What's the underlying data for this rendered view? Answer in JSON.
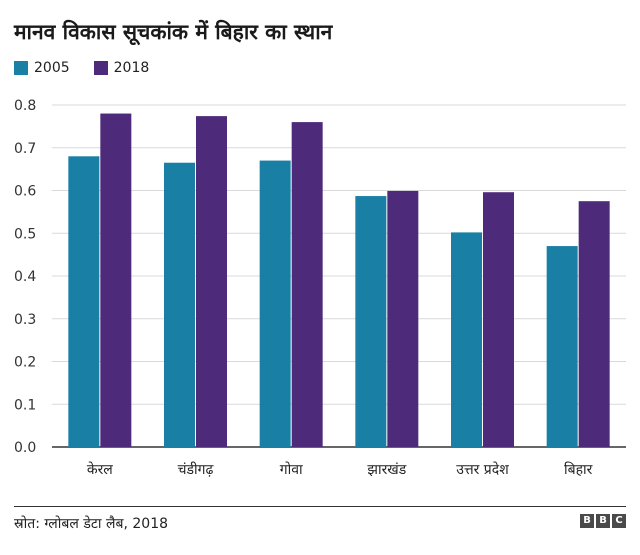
{
  "title": "मानव विकास सूचकांक में बिहार का स्थान",
  "legend": [
    {
      "label": "2005",
      "color": "#1a7fa5"
    },
    {
      "label": "2018",
      "color": "#4e2a7a"
    }
  ],
  "chart_data": {
    "type": "bar",
    "title": "मानव विकास सूचकांक में बिहार का स्थान",
    "categories": [
      "केरल",
      "चंडीगढ़",
      "गोवा",
      "झारखंड",
      "उत्तर प्रदेश",
      "बिहार"
    ],
    "series": [
      {
        "name": "2005",
        "color": "#1a7fa5",
        "values": [
          0.68,
          0.665,
          0.67,
          0.587,
          0.502,
          0.47
        ]
      },
      {
        "name": "2018",
        "color": "#4e2a7a",
        "values": [
          0.78,
          0.774,
          0.76,
          0.599,
          0.596,
          0.575
        ]
      }
    ],
    "ylim": [
      0,
      0.8
    ],
    "yticks": [
      "0.0",
      "0.1",
      "0.2",
      "0.3",
      "0.4",
      "0.5",
      "0.6",
      "0.7",
      "0.8"
    ],
    "grid": true,
    "legend_position": "top-left"
  },
  "footer": {
    "source": "स्रोत: ग्लोबल डेटा लैब, 2018",
    "logo_text": "BBC"
  }
}
